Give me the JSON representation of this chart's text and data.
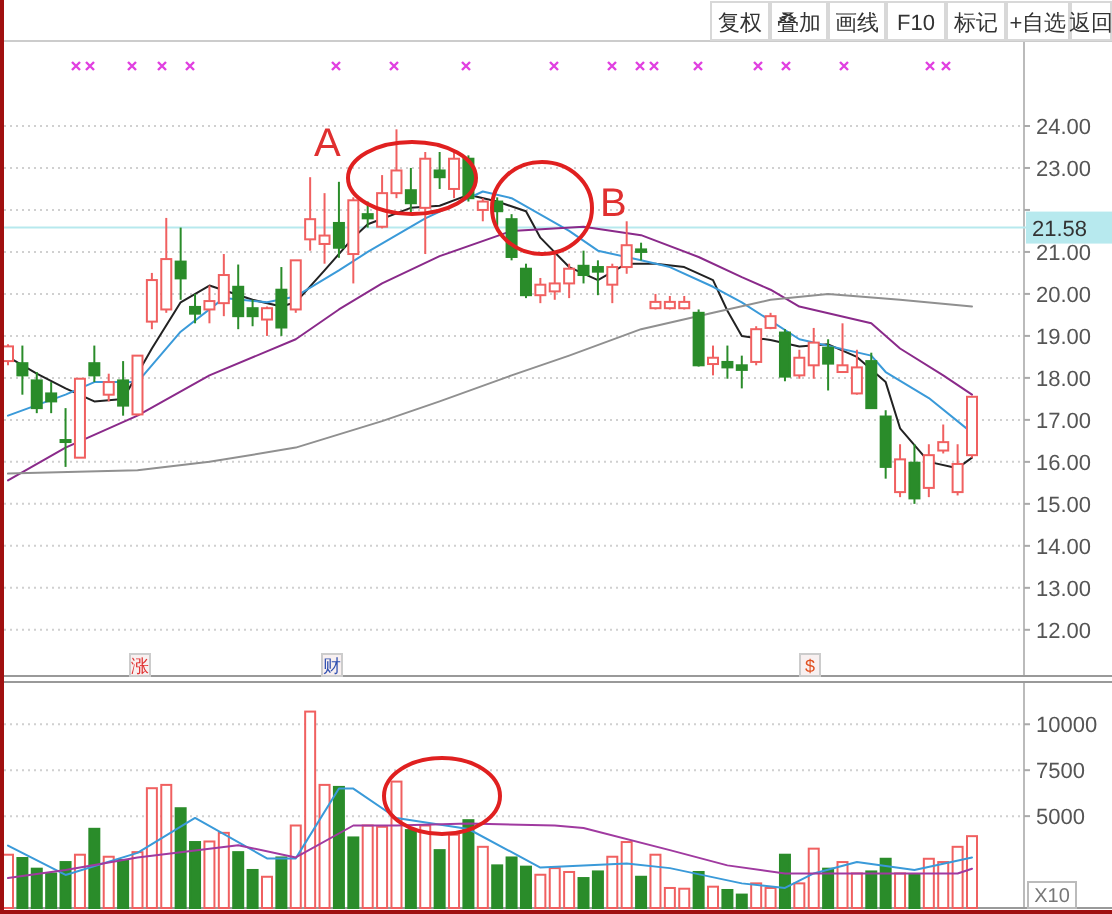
{
  "chart_data": [
    {
      "type": "candlestick",
      "categories": [
        null,
        null,
        null,
        null,
        null,
        null,
        null,
        null,
        null,
        null,
        null,
        null,
        null,
        null,
        null,
        null,
        null,
        null,
        null,
        null,
        null,
        null,
        null,
        null,
        null,
        null,
        null,
        null,
        null,
        null,
        null,
        null,
        null,
        null,
        null,
        null,
        null,
        null,
        null,
        null,
        null,
        null,
        null,
        null,
        null,
        null,
        null,
        null,
        null,
        null,
        null,
        null,
        null,
        null,
        null,
        null,
        null,
        null,
        null,
        null,
        null,
        null,
        null,
        null,
        null,
        null,
        null,
        null
      ],
      "ohlc": [
        [
          18.4,
          18.8,
          18.3,
          18.75
        ],
        [
          18.35,
          18.77,
          17.6,
          18.06
        ],
        [
          17.94,
          18.14,
          17.16,
          17.28
        ],
        [
          17.63,
          17.9,
          17.16,
          17.44
        ],
        [
          16.52,
          17.28,
          15.88,
          16.5
        ],
        [
          16.1,
          17.98,
          16.1,
          17.98
        ],
        [
          18.35,
          18.77,
          17.9,
          18.06
        ],
        [
          17.6,
          18.1,
          17.44,
          17.9
        ],
        [
          17.94,
          18.4,
          17.1,
          17.34
        ],
        [
          17.13,
          18.53,
          17.1,
          18.53
        ],
        [
          19.34,
          20.5,
          19.16,
          20.33
        ],
        [
          19.63,
          21.81,
          19.55,
          20.83
        ],
        [
          20.77,
          21.58,
          19.86,
          20.37
        ],
        [
          19.69,
          20.0,
          19.3,
          19.53
        ],
        [
          19.63,
          20.2,
          19.3,
          19.83
        ],
        [
          19.78,
          20.95,
          19.47,
          20.45
        ],
        [
          20.17,
          20.7,
          19.16,
          19.47
        ],
        [
          19.66,
          19.86,
          19.23,
          19.47
        ],
        [
          19.39,
          19.7,
          19.0,
          19.66
        ],
        [
          20.1,
          20.64,
          19.0,
          19.2
        ],
        [
          19.63,
          20.8,
          19.55,
          20.8
        ],
        [
          21.3,
          22.78,
          21.03,
          21.78
        ],
        [
          21.19,
          22.4,
          20.72,
          21.39
        ],
        [
          21.69,
          22.67,
          20.86,
          21.1
        ],
        [
          20.95,
          22.3,
          20.25,
          22.23
        ],
        [
          21.9,
          22.2,
          21.58,
          21.8
        ],
        [
          21.6,
          22.83,
          21.56,
          22.4
        ],
        [
          22.4,
          23.92,
          22.28,
          22.94
        ],
        [
          22.47,
          23.0,
          21.9,
          22.16
        ],
        [
          22.05,
          23.38,
          20.95,
          23.22
        ],
        [
          22.94,
          23.38,
          22.5,
          22.78
        ],
        [
          22.5,
          23.38,
          22.28,
          23.22
        ],
        [
          23.22,
          23.3,
          22.2,
          22.28
        ],
        [
          22.0,
          22.28,
          21.73,
          22.2
        ],
        [
          22.2,
          22.3,
          21.6,
          21.97
        ],
        [
          21.78,
          21.9,
          20.8,
          20.88
        ],
        [
          20.6,
          20.72,
          19.9,
          19.97
        ],
        [
          19.97,
          20.38,
          19.78,
          20.22
        ],
        [
          20.06,
          20.95,
          19.86,
          20.25
        ],
        [
          20.25,
          20.72,
          19.9,
          20.6
        ],
        [
          20.67,
          21.03,
          20.25,
          20.45
        ],
        [
          20.64,
          20.8,
          19.97,
          20.53
        ],
        [
          20.22,
          20.72,
          19.78,
          20.64
        ],
        [
          20.64,
          21.73,
          20.48,
          21.16
        ],
        [
          21.06,
          21.22,
          20.8,
          21.0
        ],
        [
          19.66,
          20.0,
          19.63,
          19.81
        ],
        [
          19.66,
          19.95,
          19.63,
          19.81
        ],
        [
          19.66,
          19.95,
          19.63,
          19.81
        ],
        [
          19.55,
          19.63,
          18.27,
          18.3
        ],
        [
          18.33,
          18.77,
          18.06,
          18.48
        ],
        [
          18.38,
          18.77,
          17.98,
          18.25
        ],
        [
          18.3,
          18.53,
          17.75,
          18.19
        ],
        [
          18.38,
          19.23,
          18.3,
          19.16
        ],
        [
          19.19,
          19.55,
          19.16,
          19.47
        ],
        [
          19.08,
          19.16,
          17.92,
          18.03
        ],
        [
          18.06,
          18.67,
          17.98,
          18.48
        ],
        [
          18.3,
          19.19,
          17.98,
          18.84
        ],
        [
          18.72,
          18.92,
          17.7,
          18.34
        ],
        [
          18.14,
          19.3,
          18.14,
          18.3
        ],
        [
          17.63,
          18.67,
          17.6,
          18.25
        ],
        [
          18.4,
          18.6,
          17.28,
          17.28
        ],
        [
          17.08,
          17.23,
          15.6,
          15.88
        ],
        [
          15.28,
          16.42,
          15.16,
          16.06
        ],
        [
          15.98,
          16.42,
          15.0,
          15.13
        ],
        [
          15.38,
          16.42,
          15.16,
          16.16
        ],
        [
          16.27,
          16.89,
          16.2,
          16.47
        ],
        [
          15.28,
          16.42,
          15.2,
          15.95
        ],
        [
          16.16,
          17.55,
          16.1,
          17.55
        ]
      ],
      "colors": [
        "#f06060",
        "#2a8c2a",
        "#2a8c2a",
        "#2a8c2a",
        "#2a8c2a",
        "#f06060",
        "#2a8c2a",
        "#f06060",
        "#2a8c2a",
        "#f06060",
        "#f06060",
        "#f06060",
        "#2a8c2a",
        "#2a8c2a",
        "#f06060",
        "#f06060",
        "#2a8c2a",
        "#2a8c2a",
        "#f06060",
        "#2a8c2a",
        "#f06060",
        "#f06060",
        "#f06060",
        "#2a8c2a",
        "#f06060",
        "#2a8c2a",
        "#f06060",
        "#f06060",
        "#2a8c2a",
        "#f06060",
        "#2a8c2a",
        "#f06060",
        "#2a8c2a",
        "#f06060",
        "#2a8c2a",
        "#2a8c2a",
        "#2a8c2a",
        "#f06060",
        "#f06060",
        "#f06060",
        "#2a8c2a",
        "#2a8c2a",
        "#f06060",
        "#f06060",
        "#2a8c2a",
        "#f06060",
        "#f06060",
        "#f06060",
        "#2a8c2a",
        "#f06060",
        "#2a8c2a",
        "#2a8c2a",
        "#f06060",
        "#f06060",
        "#2a8c2a",
        "#f06060",
        "#f06060",
        "#2a8c2a",
        "#f06060",
        "#f06060",
        "#2a8c2a",
        "#2a8c2a",
        "#f06060",
        "#2a8c2a",
        "#f06060",
        "#f06060",
        "#f06060",
        "#f06060"
      ],
      "series": [
        {
          "type": "line",
          "color": "#222222",
          "values": [
            18.5,
            null,
            18.1,
            null,
            17.75,
            null,
            17.44,
            null,
            17.5,
            null,
            18.7,
            null,
            19.8,
            null,
            20.2,
            null,
            null,
            19.86,
            null,
            19.7,
            19.8,
            null,
            20.56,
            null,
            21.34,
            21.66,
            null,
            null,
            22.05,
            null,
            22.1,
            null,
            22.36,
            null,
            22.2,
            null,
            21.97,
            21.34,
            null,
            20.64,
            null,
            20.33,
            null,
            20.72,
            null,
            20.72,
            null,
            20.64,
            null,
            20.33,
            19.6,
            19.0,
            null,
            18.9,
            null,
            18.75,
            null,
            18.8,
            null,
            18.5,
            null,
            17.9,
            16.8,
            null,
            16.0,
            null,
            15.85,
            16.1
          ]
        },
        {
          "type": "line",
          "color": "#3a9ad9",
          "values": [
            17.1,
            null,
            null,
            null,
            17.6,
            null,
            17.9,
            null,
            null,
            17.9,
            null,
            null,
            19.1,
            null,
            null,
            19.9,
            null,
            null,
            19.8,
            null,
            19.94,
            null,
            null,
            20.56,
            null,
            21.0,
            null,
            null,
            null,
            21.8,
            null,
            null,
            null,
            22.44,
            null,
            22.28,
            null,
            null,
            null,
            21.5,
            null,
            21.03,
            null,
            null,
            20.8,
            null,
            20.64,
            null,
            null,
            20.17,
            null,
            19.8,
            null,
            null,
            null,
            18.92,
            null,
            null,
            null,
            null,
            18.53,
            18.14,
            null,
            null,
            17.52,
            null,
            null,
            16.69
          ]
        },
        {
          "type": "line",
          "color": "#8a2a8a",
          "values": [
            15.56,
            null,
            null,
            null,
            16.34,
            null,
            null,
            null,
            null,
            17.1,
            null,
            null,
            null,
            null,
            18.06,
            null,
            null,
            null,
            null,
            null,
            18.92,
            null,
            null,
            19.63,
            null,
            null,
            20.25,
            null,
            null,
            null,
            20.9,
            null,
            null,
            null,
            null,
            21.5,
            null,
            null,
            null,
            null,
            21.6,
            null,
            null,
            null,
            21.4,
            null,
            null,
            null,
            20.88,
            null,
            null,
            20.4,
            null,
            20.1,
            null,
            19.7,
            null,
            null,
            null,
            null,
            19.3,
            null,
            18.7,
            null,
            null,
            18.06,
            null,
            17.6
          ]
        },
        {
          "type": "line",
          "color": "#909090",
          "values": [
            15.72,
            null,
            null,
            null,
            null,
            null,
            null,
            null,
            null,
            15.8,
            null,
            null,
            null,
            null,
            16.0,
            null,
            null,
            null,
            null,
            null,
            16.34,
            null,
            null,
            null,
            null,
            null,
            16.97,
            null,
            null,
            null,
            17.44,
            null,
            null,
            null,
            null,
            18.06,
            null,
            null,
            null,
            18.53,
            null,
            null,
            null,
            null,
            19.16,
            null,
            null,
            null,
            null,
            19.55,
            null,
            null,
            null,
            19.86,
            null,
            null,
            null,
            20.0,
            null,
            null,
            null,
            null,
            19.86,
            null,
            null,
            null,
            null,
            19.7
          ]
        }
      ],
      "ylim": [
        10.9,
        26.0
      ],
      "yticks": [
        {
          "value": 24,
          "label": "24.00"
        },
        {
          "value": 23,
          "label": "23.00"
        },
        {
          "value": 22,
          "label": null
        },
        {
          "value": 21,
          "label": "21.00"
        },
        {
          "value": 20,
          "label": "20.00"
        },
        {
          "value": 19,
          "label": "19.00"
        },
        {
          "value": 18,
          "label": "18.00"
        },
        {
          "value": 17,
          "label": "17.00"
        },
        {
          "value": 16,
          "label": "16.00"
        },
        {
          "value": 15,
          "label": "15.00"
        },
        {
          "value": 14,
          "label": "14.00"
        },
        {
          "value": 13,
          "label": "13.00"
        },
        {
          "value": 12,
          "label": "12.00"
        }
      ],
      "ref_lines": [
        {
          "axis": "y",
          "value": 21.58,
          "label": "21.58",
          "color": "#b7e9ee"
        }
      ],
      "grid": "y",
      "tick_labels": "y",
      "annotations": [
        "复权",
        "叠加",
        "画线",
        "F10",
        "标记",
        "+自选",
        "返回",
        "A",
        "B",
        "涨",
        "财",
        "$"
      ]
    },
    {
      "type": "bar",
      "categories": [
        null,
        null,
        null,
        null,
        null,
        null,
        null,
        null,
        null,
        null,
        null,
        null,
        null,
        null,
        null,
        null,
        null,
        null,
        null,
        null,
        null,
        null,
        null,
        null,
        null,
        null,
        null,
        null,
        null,
        null,
        null,
        null,
        null,
        null,
        null,
        null,
        null,
        null,
        null,
        null,
        null,
        null,
        null,
        null,
        null,
        null,
        null,
        null,
        null,
        null,
        null,
        null,
        null,
        null,
        null,
        null,
        null,
        null,
        null,
        null,
        null,
        null,
        null,
        null,
        null,
        null,
        null,
        null
      ],
      "values": [
        2900,
        2720,
        2140,
        1880,
        2500,
        2900,
        4310,
        2790,
        2610,
        3040,
        6520,
        6700,
        5430,
        3590,
        3620,
        4090,
        3040,
        2070,
        1700,
        2750,
        4490,
        10690,
        6700,
        6590,
        3840,
        4490,
        4420,
        6880,
        4240,
        4490,
        3150,
        3990,
        4780,
        3330,
        2320,
        2750,
        2250,
        1810,
        2170,
        1960,
        1630,
        1990,
        2790,
        3590,
        1700,
        2900,
        1090,
        1050,
        1960,
        1160,
        980,
        730,
        1340,
        1090,
        2900,
        1340,
        3230,
        2140,
        2500,
        1880,
        1990,
        2680,
        1880,
        1810,
        2680,
        2500,
        3330,
        3910
      ],
      "colors": [
        "#f06060",
        "#2a8c2a",
        "#2a8c2a",
        "#2a8c2a",
        "#2a8c2a",
        "#f06060",
        "#2a8c2a",
        "#f06060",
        "#2a8c2a",
        "#f06060",
        "#f06060",
        "#f06060",
        "#2a8c2a",
        "#2a8c2a",
        "#f06060",
        "#f06060",
        "#2a8c2a",
        "#2a8c2a",
        "#f06060",
        "#2a8c2a",
        "#f06060",
        "#f06060",
        "#f06060",
        "#2a8c2a",
        "#2a8c2a",
        "#f06060",
        "#f06060",
        "#f06060",
        "#2a8c2a",
        "#f06060",
        "#2a8c2a",
        "#f06060",
        "#2a8c2a",
        "#f06060",
        "#2a8c2a",
        "#2a8c2a",
        "#2a8c2a",
        "#f06060",
        "#f06060",
        "#f06060",
        "#2a8c2a",
        "#2a8c2a",
        "#f06060",
        "#f06060",
        "#2a8c2a",
        "#f06060",
        "#f06060",
        "#f06060",
        "#2a8c2a",
        "#f06060",
        "#2a8c2a",
        "#2a8c2a",
        "#f06060",
        "#f06060",
        "#2a8c2a",
        "#f06060",
        "#f06060",
        "#2a8c2a",
        "#f06060",
        "#f06060",
        "#2a8c2a",
        "#2a8c2a",
        "#f06060",
        "#2a8c2a",
        "#f06060",
        "#f06060",
        "#f06060",
        "#f06060"
      ],
      "series": [
        {
          "type": "line",
          "color": "#3a9ad9",
          "values": [
            3400,
            null,
            null,
            null,
            1800,
            null,
            null,
            null,
            null,
            3000,
            null,
            null,
            null,
            4900,
            null,
            null,
            null,
            null,
            2700,
            null,
            2700,
            null,
            null,
            6500,
            6500,
            null,
            null,
            4900,
            null,
            null,
            null,
            null,
            4300,
            null,
            null,
            null,
            null,
            2200,
            null,
            null,
            null,
            null,
            null,
            2420,
            null,
            null,
            2170,
            null,
            null,
            null,
            null,
            1340,
            null,
            null,
            1090,
            null,
            1880,
            null,
            null,
            2500,
            null,
            null,
            null,
            2070,
            null,
            null,
            null,
            2750
          ]
        },
        {
          "type": "line",
          "color": "#a03aa0",
          "values": [
            1630,
            null,
            null,
            null,
            2070,
            null,
            null,
            null,
            null,
            2750,
            null,
            null,
            null,
            null,
            null,
            null,
            3420,
            null,
            null,
            null,
            2750,
            null,
            null,
            null,
            4490,
            null,
            null,
            4490,
            null,
            null,
            null,
            null,
            4600,
            null,
            null,
            null,
            null,
            null,
            4490,
            null,
            4350,
            null,
            null,
            null,
            null,
            null,
            3150,
            null,
            null,
            null,
            2320,
            null,
            null,
            null,
            1880,
            null,
            null,
            null,
            null,
            1880,
            null,
            null,
            null,
            null,
            null,
            null,
            1880,
            2140
          ]
        }
      ],
      "ylim": [
        0,
        12300
      ],
      "yticks": [
        10000,
        7500,
        5000
      ],
      "grid": "y",
      "tick_labels": "y",
      "annotations": [
        "X10"
      ]
    }
  ]
}
